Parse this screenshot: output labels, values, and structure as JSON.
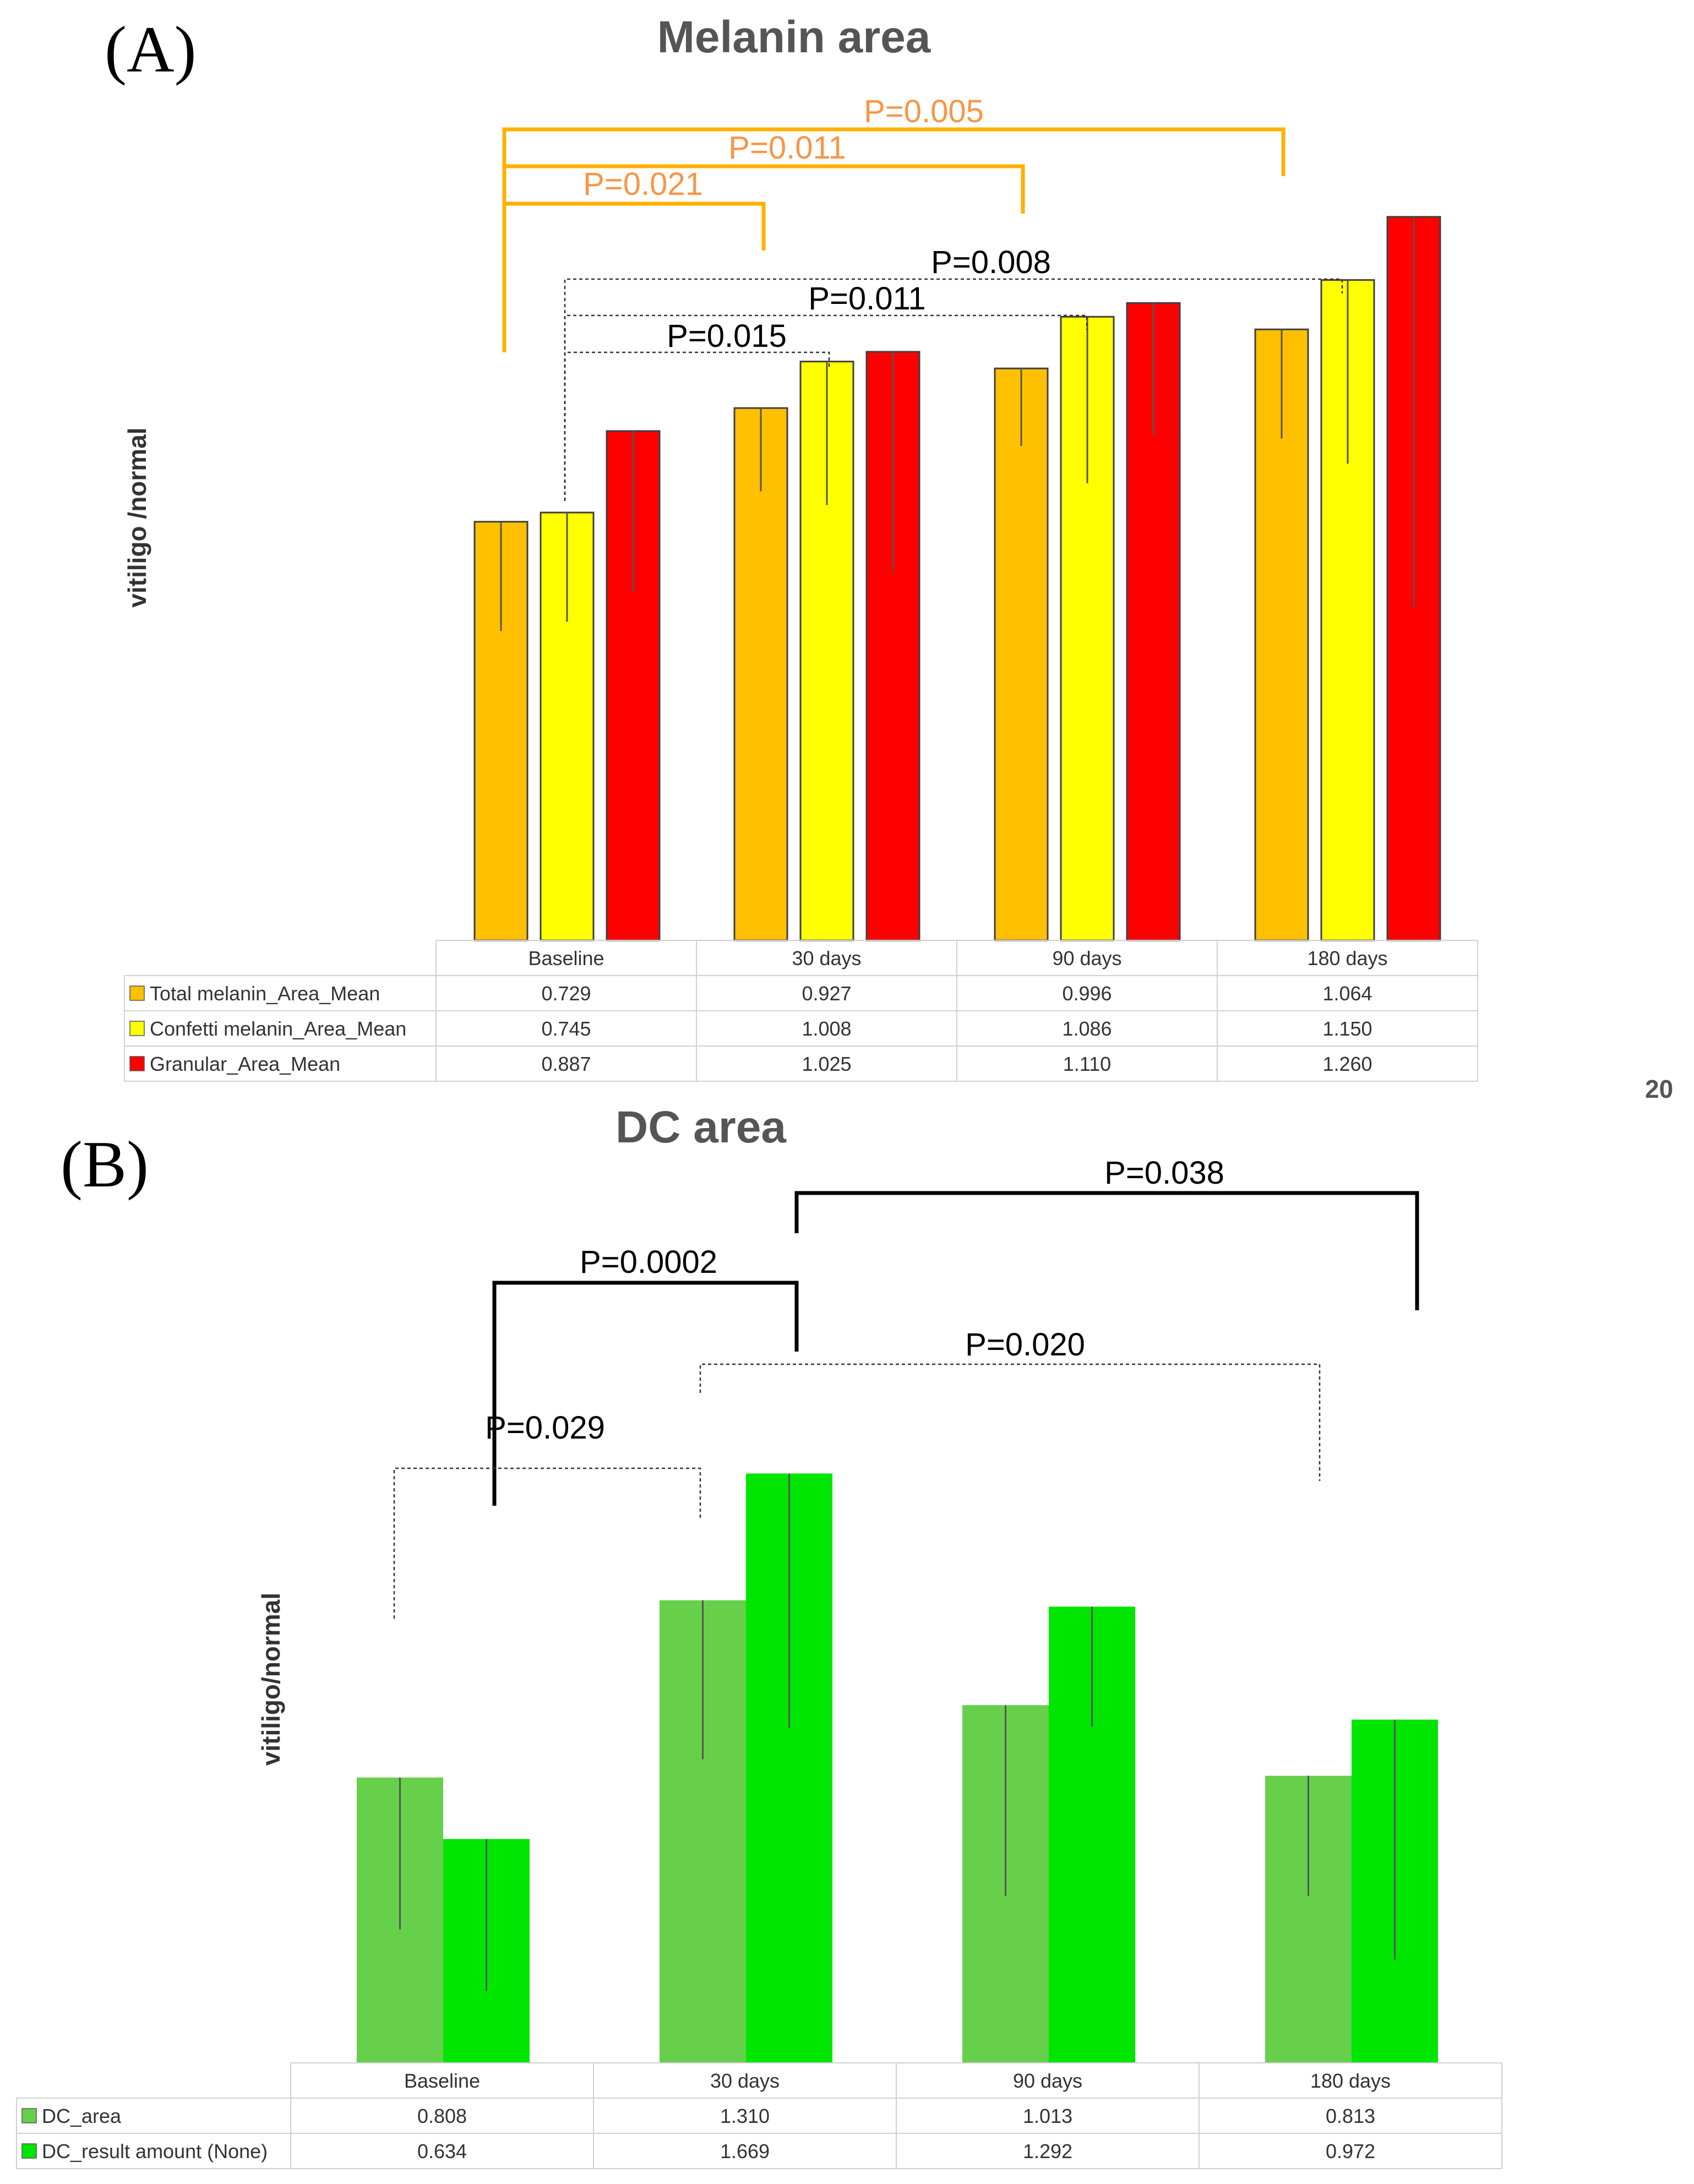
{
  "page_number": "20",
  "chart_data": [
    {
      "type": "bar",
      "panel_label": "(A)",
      "title": "Melanin area",
      "ylabel": "vitiligo /normal",
      "xlabel": "",
      "categories": [
        "Baseline",
        "30 days",
        "90 days",
        "180 days"
      ],
      "ylim": [
        0,
        1.35
      ],
      "series": [
        {
          "name": "Total melanin_Area_Mean",
          "color": "#FFC000",
          "values": [
            0.729,
            0.927,
            0.996,
            1.064
          ],
          "table_values": [
            "0.729",
            "0.927",
            "0.996",
            "1.064"
          ],
          "error": [
            0.19,
            0.145,
            0.135,
            0.19
          ]
        },
        {
          "name": "Confetti melanin_Area_Mean",
          "color": "#FFFF00",
          "values": [
            0.745,
            1.008,
            1.086,
            1.15
          ],
          "table_values": [
            "0.745",
            "1.008",
            "1.086",
            "1.150"
          ],
          "error": [
            0.19,
            0.25,
            0.29,
            0.32
          ]
        },
        {
          "name": "Granular_Area_Mean",
          "color": "#FF0000",
          "values": [
            0.887,
            1.025,
            1.11,
            1.26
          ],
          "table_values": [
            "0.887",
            "1.025",
            "1.110",
            "1.260"
          ],
          "error": [
            0.28,
            0.38,
            0.23,
            0.68
          ]
        }
      ],
      "significance": [
        {
          "label": "P=0.005",
          "color": "#FFB000",
          "text_color": "#F79646",
          "style": "solid",
          "from": 0,
          "to": 3
        },
        {
          "label": "P=0.011",
          "color": "#FFB000",
          "text_color": "#F79646",
          "style": "solid",
          "from": 0,
          "to": 2
        },
        {
          "label": "P=0.021",
          "color": "#FFB000",
          "text_color": "#F79646",
          "style": "solid",
          "from": 0,
          "to": 1
        },
        {
          "label": "P=0.008",
          "color": "#333333",
          "text_color": "#000000",
          "style": "dotted",
          "from": 0,
          "to": 3
        },
        {
          "label": "P=0.011",
          "color": "#333333",
          "text_color": "#000000",
          "style": "dotted",
          "from": 0,
          "to": 2
        },
        {
          "label": "P=0.015",
          "color": "#333333",
          "text_color": "#000000",
          "style": "dotted",
          "from": 0,
          "to": 1
        }
      ]
    },
    {
      "type": "bar",
      "panel_label": "(B)",
      "title": "DC area",
      "ylabel": "vitiligo/normal",
      "xlabel": "",
      "categories": [
        "Baseline",
        "30 days",
        "90 days",
        "180 days"
      ],
      "ylim": [
        0,
        2.1
      ],
      "series": [
        {
          "name": "DC_area",
          "color": "#66D04A",
          "values": [
            0.808,
            1.31,
            1.013,
            0.813
          ],
          "table_values": [
            "0.808",
            "1.310",
            "1.013",
            "0.813"
          ],
          "error": [
            0.43,
            0.45,
            0.54,
            0.34
          ]
        },
        {
          "name": "DC_result amount (None)",
          "color": "#00E600",
          "values": [
            0.634,
            1.669,
            1.292,
            0.972
          ],
          "table_values": [
            "0.634",
            "1.669",
            "1.292",
            "0.972"
          ],
          "error": [
            0.43,
            0.72,
            0.34,
            0.68
          ]
        }
      ],
      "significance": [
        {
          "label": "P=0.038",
          "color": "#000000",
          "text_color": "#000000",
          "style": "solid",
          "from": 1,
          "to": 3
        },
        {
          "label": "P=0.0002",
          "color": "#000000",
          "text_color": "#000000",
          "style": "solid",
          "from": 0,
          "to": 1
        },
        {
          "label": "P=0.020",
          "color": "#333333",
          "text_color": "#000000",
          "style": "dotted",
          "from": 1,
          "to": 3
        },
        {
          "label": "P=0.029",
          "color": "#333333",
          "text_color": "#000000",
          "style": "dotted",
          "from": 0,
          "to": 1
        }
      ]
    }
  ]
}
